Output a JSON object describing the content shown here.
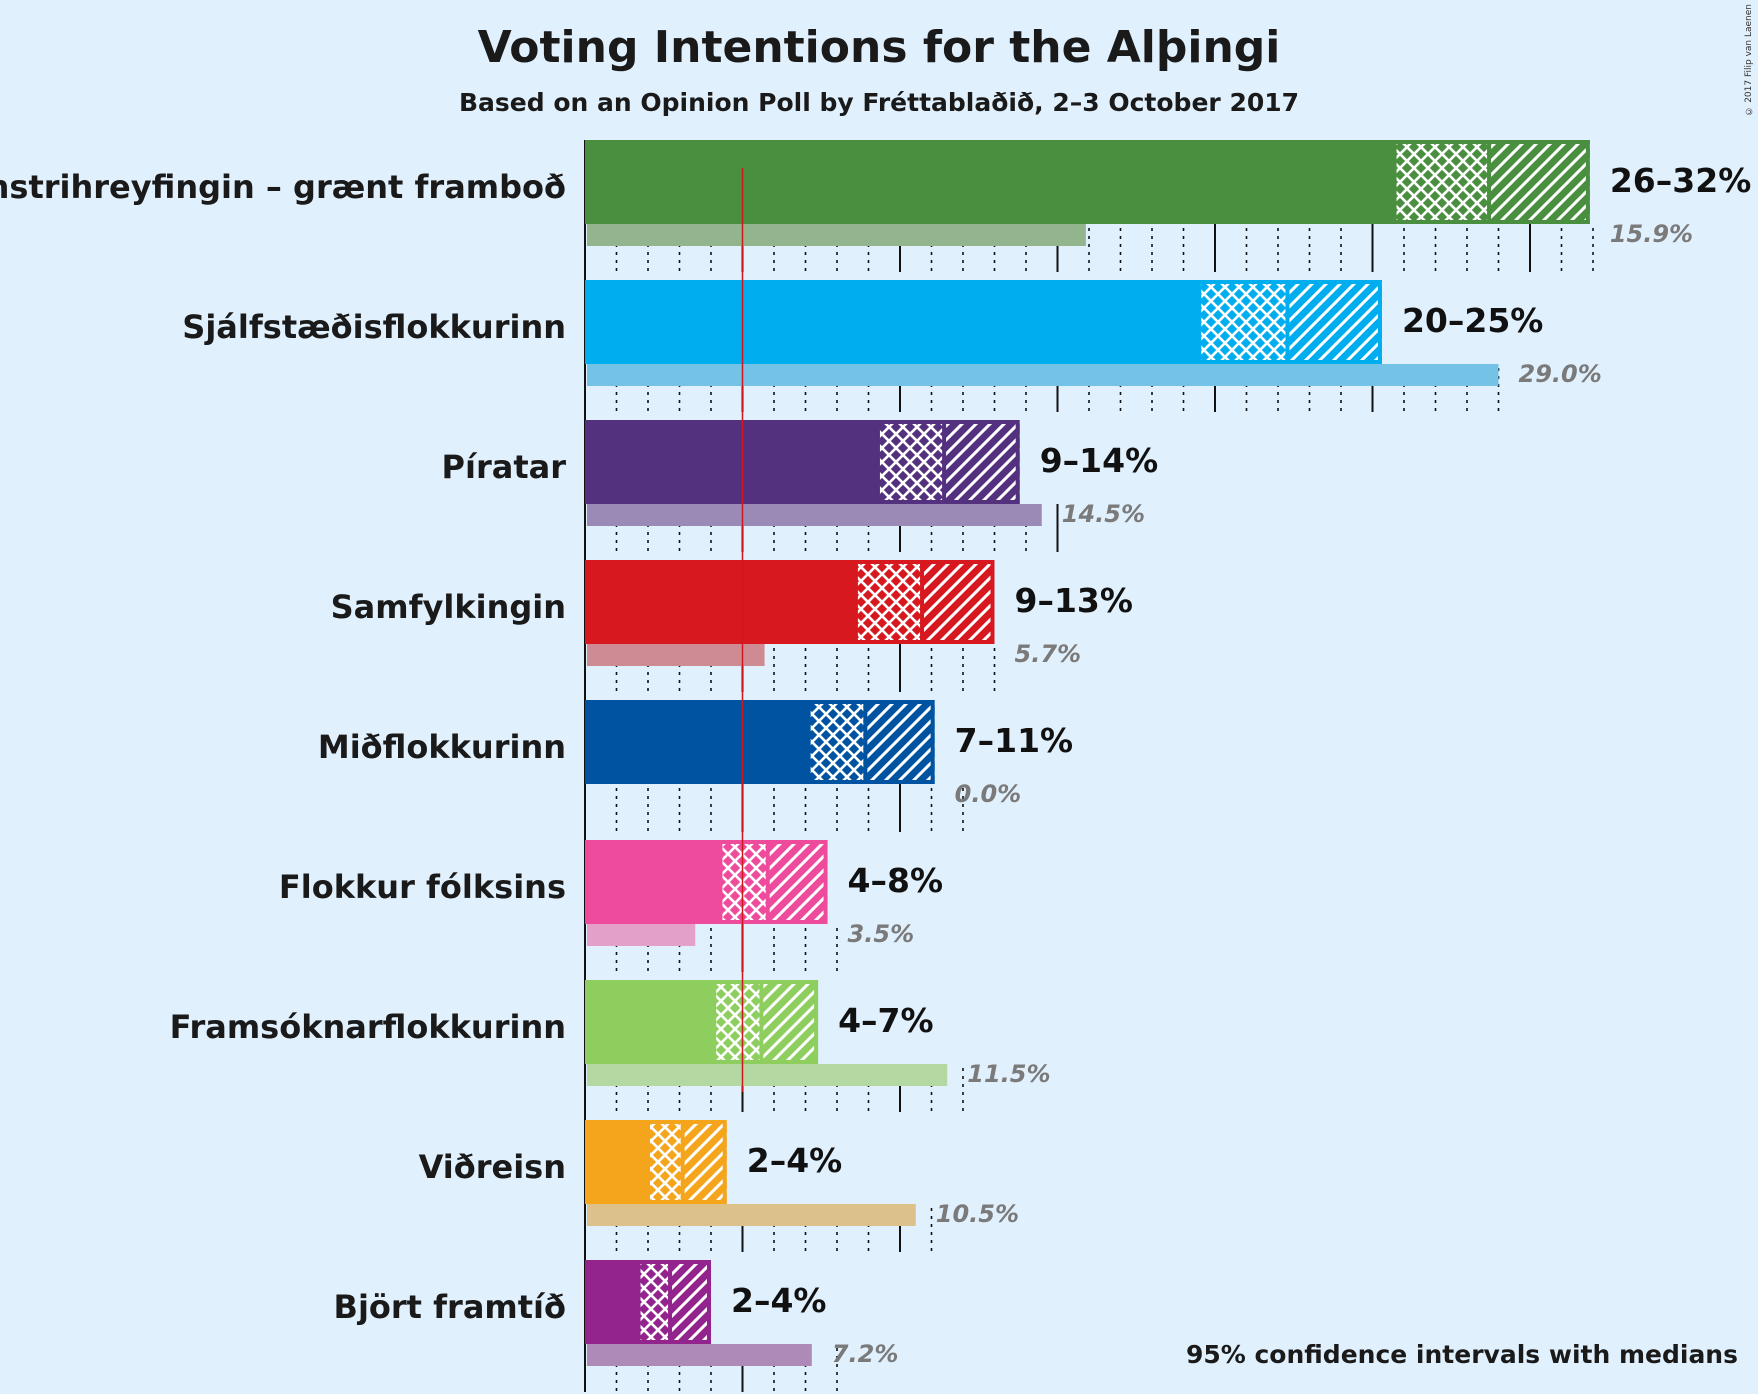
{
  "title": "Voting Intentions for the Alþingi",
  "subtitle": "Based on an Opinion Poll by Fréttablaðið, 2–3 October 2017",
  "copyright": "© 2017 Filip van Laenen",
  "footnote": "95% confidence intervals with medians",
  "chart_data": {
    "type": "bar",
    "orientation": "horizontal",
    "title": "Voting Intentions for the Alþingi",
    "subtitle": "Based on an Opinion Poll by Fréttablaðið, 2–3 October 2017",
    "unit": "%",
    "xlim": [
      0,
      32
    ],
    "major_gridlines": [
      5,
      10,
      15,
      20,
      25,
      30
    ],
    "minor_gridlines_step": 1,
    "threshold": 5,
    "parties": [
      {
        "name": "Vinstrihreyfingin – grænt framboð",
        "color": "#4a8f40",
        "prev_color": "#93b58e",
        "ci95_low": 25.7,
        "ci80_low": 26.0,
        "median": 28.7,
        "ci80_high": 31.5,
        "ci95_high": 31.9,
        "range_label": "26–32%",
        "previous": 15.9,
        "previous_label": "15.9%"
      },
      {
        "name": "Sjálfstæðisflokkurinn",
        "color": "#00adef",
        "prev_color": "#74c2e6",
        "ci95_low": 19.5,
        "ci80_low": 19.6,
        "median": 22.3,
        "ci80_high": 25.0,
        "ci95_high": 25.3,
        "range_label": "20–25%",
        "previous": 29.0,
        "previous_label": "29.0%"
      },
      {
        "name": "Píratar",
        "color": "#54317e",
        "prev_color": "#9b8ab5",
        "ci95_low": 9.3,
        "ci80_low": 9.4,
        "median": 11.4,
        "ci80_high": 13.6,
        "ci95_high": 13.8,
        "range_label": "9–14%",
        "previous": 14.5,
        "previous_label": "14.5%"
      },
      {
        "name": "Samfylkingin",
        "color": "#d8181f",
        "prev_color": "#cf8b93",
        "ci95_low": 8.6,
        "ci80_low": 8.7,
        "median": 10.7,
        "ci80_high": 12.8,
        "ci95_high": 13.0,
        "range_label": "9–13%",
        "previous": 5.7,
        "previous_label": "5.7%"
      },
      {
        "name": "Miðflokkurinn",
        "color": "#0053a0",
        "prev_color": "#7895c0",
        "ci95_low": 7.1,
        "ci80_low": 7.2,
        "median": 8.9,
        "ci80_high": 10.9,
        "ci95_high": 11.1,
        "range_label": "7–11%",
        "previous": 0.0,
        "previous_label": "0.0%"
      },
      {
        "name": "Flokkur fólksins",
        "color": "#ee4b9d",
        "prev_color": "#e3a0c8",
        "ci95_low": 4.3,
        "ci80_low": 4.4,
        "median": 5.8,
        "ci80_high": 7.5,
        "ci95_high": 7.7,
        "range_label": "4–8%",
        "previous": 3.5,
        "previous_label": "3.5%"
      },
      {
        "name": "Framsóknarflokkurinn",
        "color": "#8ece5e",
        "prev_color": "#b3d8a1",
        "ci95_low": 4.1,
        "ci80_low": 4.2,
        "median": 5.6,
        "ci80_high": 7.2,
        "ci95_high": 7.4,
        "range_label": "4–7%",
        "previous": 11.5,
        "previous_label": "11.5%"
      },
      {
        "name": "Viðreisn",
        "color": "#f4a51c",
        "prev_color": "#dcc18a",
        "ci95_low": 2.0,
        "ci80_low": 2.1,
        "median": 3.1,
        "ci80_high": 4.4,
        "ci95_high": 4.5,
        "range_label": "2–4%",
        "previous": 10.5,
        "previous_label": "10.5%"
      },
      {
        "name": "Björt framtíð",
        "color": "#93248d",
        "prev_color": "#ad8ab8",
        "ci95_low": 1.7,
        "ci80_low": 1.8,
        "median": 2.7,
        "ci80_high": 3.9,
        "ci95_high": 4.0,
        "range_label": "2–4%",
        "previous": 7.2,
        "previous_label": "7.2%"
      }
    ]
  }
}
